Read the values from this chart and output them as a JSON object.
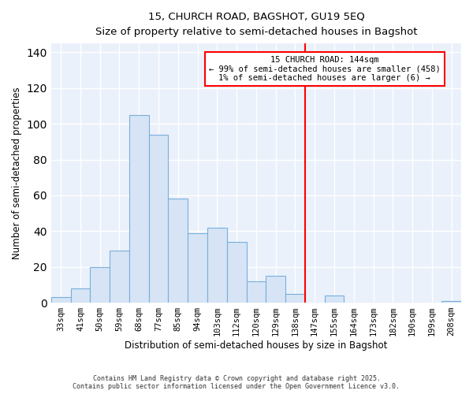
{
  "title_line1": "15, CHURCH ROAD, BAGSHOT, GU19 5EQ",
  "title_line2": "Size of property relative to semi-detached houses in Bagshot",
  "xlabel": "Distribution of semi-detached houses by size in Bagshot",
  "ylabel": "Number of semi-detached properties",
  "bar_labels": [
    "33sqm",
    "41sqm",
    "50sqm",
    "59sqm",
    "68sqm",
    "77sqm",
    "85sqm",
    "94sqm",
    "103sqm",
    "112sqm",
    "120sqm",
    "129sqm",
    "138sqm",
    "147sqm",
    "155sqm",
    "164sqm",
    "173sqm",
    "182sqm",
    "190sqm",
    "199sqm",
    "208sqm"
  ],
  "bar_values": [
    3,
    8,
    20,
    29,
    105,
    94,
    58,
    39,
    42,
    34,
    12,
    15,
    5,
    0,
    4,
    0,
    0,
    0,
    0,
    0,
    1
  ],
  "bar_color": "#d6e4f5",
  "bar_edge_color": "#7aaedc",
  "vline_index": 13,
  "vline_color": "red",
  "vline_label_title": "15 CHURCH ROAD: 144sqm",
  "vline_label_line2": "← 99% of semi-detached houses are smaller (458)",
  "vline_label_line3": "1% of semi-detached houses are larger (6) →",
  "annotation_box_edge_color": "red",
  "ylim": [
    0,
    145
  ],
  "yticks": [
    0,
    20,
    40,
    60,
    80,
    100,
    120,
    140
  ],
  "footer_line1": "Contains HM Land Registry data © Crown copyright and database right 2025.",
  "footer_line2": "Contains public sector information licensed under the Open Government Licence v3.0.",
  "background_color": "#ffffff",
  "plot_bg_color": "#eaf1fb",
  "grid_color": "#ffffff"
}
